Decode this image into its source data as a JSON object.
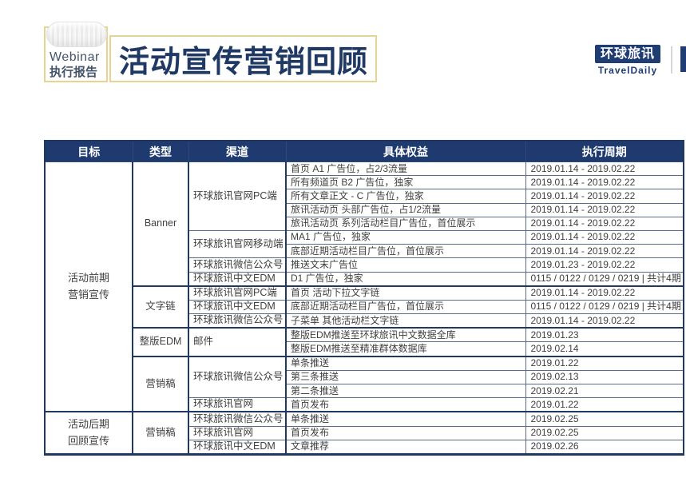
{
  "header": {
    "badge_line1": "Webinar",
    "badge_line2": "执行报告",
    "title": "活动宣传营销回顾",
    "logo_cn": "环球旅讯",
    "logo_en": "TravelDaily"
  },
  "table": {
    "columns": [
      "目标",
      "类型",
      "渠道",
      "具体权益",
      "执行周期"
    ],
    "goals": [
      {
        "label": "活动前期\n营销宣传",
        "types": [
          {
            "label": "Banner",
            "channels": [
              {
                "label": "环球旅讯官网PC端",
                "items": [
                  {
                    "benefit": "首页 A1 广告位，占2/3流量",
                    "period": "2019.01.14 - 2019.02.22"
                  },
                  {
                    "benefit": "所有频道页 B2 广告位，独家",
                    "period": "2019.01.14 - 2019.02.22"
                  },
                  {
                    "benefit": "所有文章正文 - C 广告位，独家",
                    "period": "2019.01.14 - 2019.02.22"
                  },
                  {
                    "benefit": "旅讯活动页 头部广告位，占1/2流量",
                    "period": "2019.01.14 - 2019.02.22"
                  },
                  {
                    "benefit": "旅讯活动页 系列活动栏目广告位，首位展示",
                    "period": "2019.01.14 - 2019.02.22"
                  }
                ]
              },
              {
                "label": "环球旅讯官网移动端",
                "items": [
                  {
                    "benefit": "MA1 广告位，独家",
                    "period": "2019.01.14 - 2019.02.22"
                  },
                  {
                    "benefit": "底部近期活动栏目广告位，首位展示",
                    "period": "2019.01.14 - 2019.02.22"
                  }
                ]
              },
              {
                "label": "环球旅讯微信公众号",
                "items": [
                  {
                    "benefit": "推送文末广告位",
                    "period": "2019.01.23 - 2019.02.22"
                  }
                ]
              },
              {
                "label": "环球旅讯中文EDM",
                "items": [
                  {
                    "benefit": "D1 广告位，独家",
                    "period": "0115 / 0122 / 0129 / 0219 | 共计4期"
                  }
                ]
              }
            ]
          },
          {
            "label": "文字链",
            "channels": [
              {
                "label": "环球旅讯官网PC端",
                "items": [
                  {
                    "benefit": "首页 活动下拉文字链",
                    "period": "2019.01.14 - 2019.02.22"
                  }
                ]
              },
              {
                "label": "环球旅讯中文EDM",
                "items": [
                  {
                    "benefit": "底部近期活动栏目广告位，首位展示",
                    "period": "0115 / 0122 / 0129 / 0219 | 共计4期"
                  }
                ]
              },
              {
                "label": "环球旅讯微信公众号",
                "items": [
                  {
                    "benefit": "子菜单 其他活动栏文字链",
                    "period": "2019.01.14 - 2019.02.22"
                  }
                ]
              }
            ]
          },
          {
            "label": "整版EDM",
            "channels": [
              {
                "label": "邮件",
                "items": [
                  {
                    "benefit": "整版EDM推送至环球旅讯中文数据全库",
                    "period": "2019.01.23"
                  },
                  {
                    "benefit": "整版EDM推送至精准群体数据库",
                    "period": "2019.02.14"
                  }
                ]
              }
            ]
          },
          {
            "label": "营销稿",
            "channels": [
              {
                "label": "环球旅讯微信公众号",
                "items": [
                  {
                    "benefit": "单条推送",
                    "period": "2019.01.22"
                  },
                  {
                    "benefit": "第三条推送",
                    "period": "2019.02.13"
                  },
                  {
                    "benefit": "第二条推送",
                    "period": "2019.02.21"
                  }
                ]
              },
              {
                "label": "环球旅讯官网",
                "items": [
                  {
                    "benefit": "首页发布",
                    "period": "2019.01.22"
                  }
                ]
              }
            ]
          }
        ]
      },
      {
        "label": "活动后期\n回顾宣传",
        "types": [
          {
            "label": "营销稿",
            "channels": [
              {
                "label": "环球旅讯微信公众号",
                "items": [
                  {
                    "benefit": "单条推送",
                    "period": "2019.02.25"
                  }
                ]
              },
              {
                "label": "环球旅讯官网",
                "items": [
                  {
                    "benefit": "首页发布",
                    "period": "2019.02.25"
                  }
                ]
              },
              {
                "label": "环球旅讯中文EDM",
                "items": [
                  {
                    "benefit": "文章推荐",
                    "period": "2019.02.26"
                  }
                ]
              }
            ]
          }
        ]
      }
    ]
  }
}
